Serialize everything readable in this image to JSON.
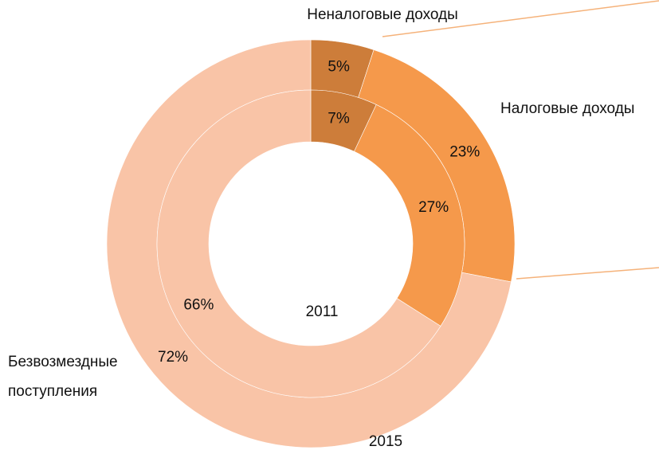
{
  "chart_data": {
    "type": "donut",
    "categories": [
      "Неналоговые доходы",
      "Налоговые доходы",
      "Безвозмездные поступления"
    ],
    "colors": [
      "#cd7d3a",
      "#f5994b",
      "#f9c4a7"
    ],
    "series": [
      {
        "name": "2015",
        "values": [
          5,
          23,
          72
        ],
        "value_labels": [
          "5%",
          "23%",
          "72%"
        ]
      },
      {
        "name": "2011",
        "values": [
          7,
          27,
          66
        ],
        "value_labels": [
          "7%",
          "27%",
          "66%"
        ]
      }
    ]
  }
}
